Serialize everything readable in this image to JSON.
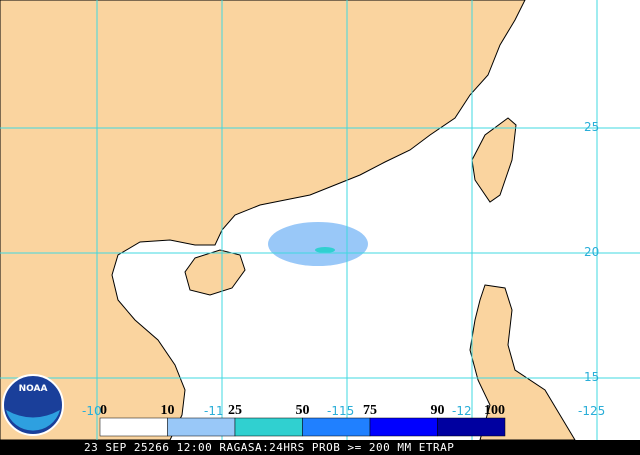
{
  "map": {
    "lat_labels": [
      "25",
      "20",
      "15"
    ],
    "lon_labels": [
      "-10",
      "-11",
      "-115",
      "-12",
      "-125"
    ],
    "legend": [
      {
        "label": "0",
        "color": "#ffffff"
      },
      {
        "label": "10",
        "color": "#99c8f8"
      },
      {
        "label": "25",
        "color": "#30d0d0"
      },
      {
        "label": "50",
        "color": "#2080ff"
      },
      {
        "label": "75",
        "color": "#0000ff"
      },
      {
        "label": "90",
        "color": "#0000a0"
      },
      {
        "label": "100",
        "color": null
      }
    ],
    "logo": "NOAA",
    "footer": "23 SEP 25266 12:00 RAGASA:24HRS PROB >= 200 MM ETRAP"
  }
}
